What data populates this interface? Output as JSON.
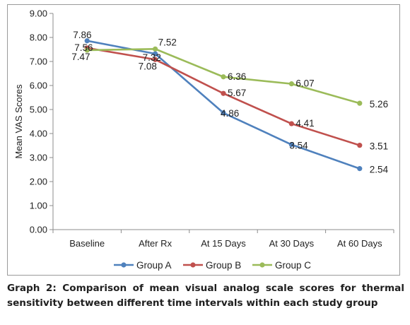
{
  "caption": "Graph 2: Comparison of mean visual analog scale scores for thermal sensitivity between different time intervals within each study group",
  "chart_data": {
    "type": "line",
    "ylabel": "Mean VAS Scores",
    "xlabel": "",
    "ylim": [
      0,
      9
    ],
    "yticks": [
      "0.00",
      "1.00",
      "2.00",
      "3.00",
      "4.00",
      "5.00",
      "6.00",
      "7.00",
      "8.00",
      "9.00"
    ],
    "categories": [
      "Baseline",
      "After Rx",
      "At 15 Days",
      "At 30 Days",
      "At 60 Days"
    ],
    "grid": false,
    "legend": "bottom",
    "series": [
      {
        "name": "Group A",
        "color": "#4f81bd",
        "values": [
          7.86,
          7.32,
          4.86,
          3.54,
          2.54
        ],
        "labels": [
          "7.86",
          "7.32",
          "4.86",
          "3.54",
          "2.54"
        ]
      },
      {
        "name": "Group B",
        "color": "#c0504d",
        "values": [
          7.56,
          7.08,
          5.67,
          4.41,
          3.51
        ],
        "labels": [
          "7.56",
          "7.08",
          "5.67",
          "4.41",
          "3.51"
        ]
      },
      {
        "name": "Group C",
        "color": "#9bbb59",
        "values": [
          7.47,
          7.52,
          6.36,
          6.07,
          5.26
        ],
        "labels": [
          "7.47",
          "7.52",
          "6.36",
          "6.07",
          "5.26"
        ]
      }
    ]
  }
}
